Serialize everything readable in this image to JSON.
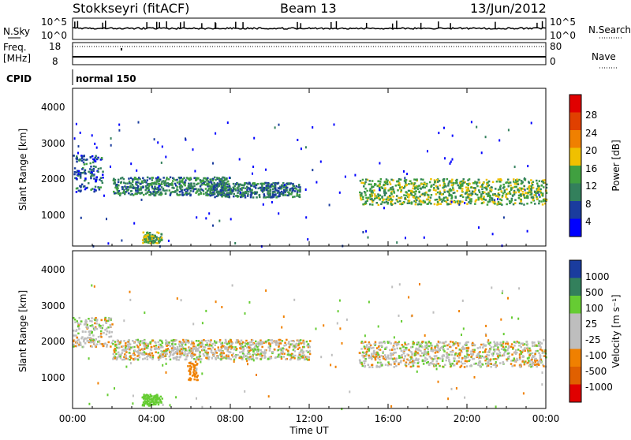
{
  "header": {
    "station": "Stokkseyri (fitACF)",
    "beam": "Beam 13",
    "date": "13/Jun/2012"
  },
  "strips": {
    "nsky_label": "N.Sky",
    "nsky_ticks": [
      "10^5",
      "10^0"
    ],
    "nsearch_label": "N.Search",
    "nsearch_ticks": [
      "10^5",
      "10^0"
    ],
    "freq_label_1": "Freq.",
    "freq_label_2": "[MHz]",
    "freq_ticks": [
      "18",
      "8"
    ],
    "nave_label": "Nave",
    "nave_ticks": [
      "80",
      "0"
    ],
    "cpid_label": "CPID",
    "cpid_value": "normal 150"
  },
  "colors": {
    "power": [
      "#0000ff",
      "#1a3c9e",
      "#33805c",
      "#40a040",
      "#f0c000",
      "#f08000",
      "#e04000",
      "#e00000"
    ],
    "velocity": [
      "#1a3c9e",
      "#33805c",
      "#66cc33",
      "#bebebe",
      "#bebebe",
      "#f08000",
      "#e06000",
      "#e00000"
    ]
  },
  "chart_data": [
    {
      "type": "heatmap",
      "name": "power",
      "x": [
        "00:00",
        "04:00",
        "08:00",
        "12:00",
        "16:00",
        "20:00",
        "00:00"
      ],
      "ylabel": "Slant Range [km]",
      "yticks": [
        "4000",
        "3000",
        "2000",
        "1000"
      ],
      "ylim": [
        200,
        4500
      ],
      "colorbar": {
        "label": "Power [dB]",
        "ticks": [
          "28",
          "24",
          "20",
          "16",
          "12",
          "8",
          "4"
        ],
        "range": [
          0,
          32
        ]
      },
      "features": [
        {
          "t": [
            0.0,
            1.5
          ],
          "range": [
            1700,
            2700
          ],
          "value": 8
        },
        {
          "t": [
            2.0,
            8.0
          ],
          "range": [
            1600,
            2100
          ],
          "value": 10
        },
        {
          "t": [
            3.5,
            4.5
          ],
          "range": [
            300,
            600
          ],
          "value": 14
        },
        {
          "t": [
            7.0,
            11.5
          ],
          "range": [
            1550,
            1950
          ],
          "value": 9
        },
        {
          "t": [
            14.5,
            24.0
          ],
          "range": [
            1350,
            2050
          ],
          "value": 14
        }
      ]
    },
    {
      "type": "heatmap",
      "name": "velocity",
      "xlabel": "Time UT",
      "x": [
        "00:00",
        "04:00",
        "08:00",
        "12:00",
        "16:00",
        "20:00",
        "00:00"
      ],
      "ylabel": "Slant Range [km]",
      "yticks": [
        "4000",
        "3000",
        "2000",
        "1000"
      ],
      "ylim": [
        200,
        4500
      ],
      "colorbar": {
        "label": "Velocity [m s⁻¹]",
        "ticks": [
          "1000",
          "500",
          "100",
          "25",
          "-25",
          "-100",
          "-500",
          "-1000"
        ]
      },
      "features": [
        {
          "t": [
            0.0,
            2.0
          ],
          "range": [
            1900,
            2700
          ],
          "value": 0
        },
        {
          "t": [
            2.0,
            12.0
          ],
          "range": [
            1550,
            2100
          ],
          "value": 0
        },
        {
          "t": [
            3.5,
            4.5
          ],
          "range": [
            300,
            600
          ],
          "value": 200
        },
        {
          "t": [
            5.8,
            6.3
          ],
          "range": [
            1000,
            1500
          ],
          "value": -150
        },
        {
          "t": [
            14.5,
            24.0
          ],
          "range": [
            1350,
            2050
          ],
          "value": 0
        }
      ]
    }
  ],
  "x_title": "Time UT"
}
